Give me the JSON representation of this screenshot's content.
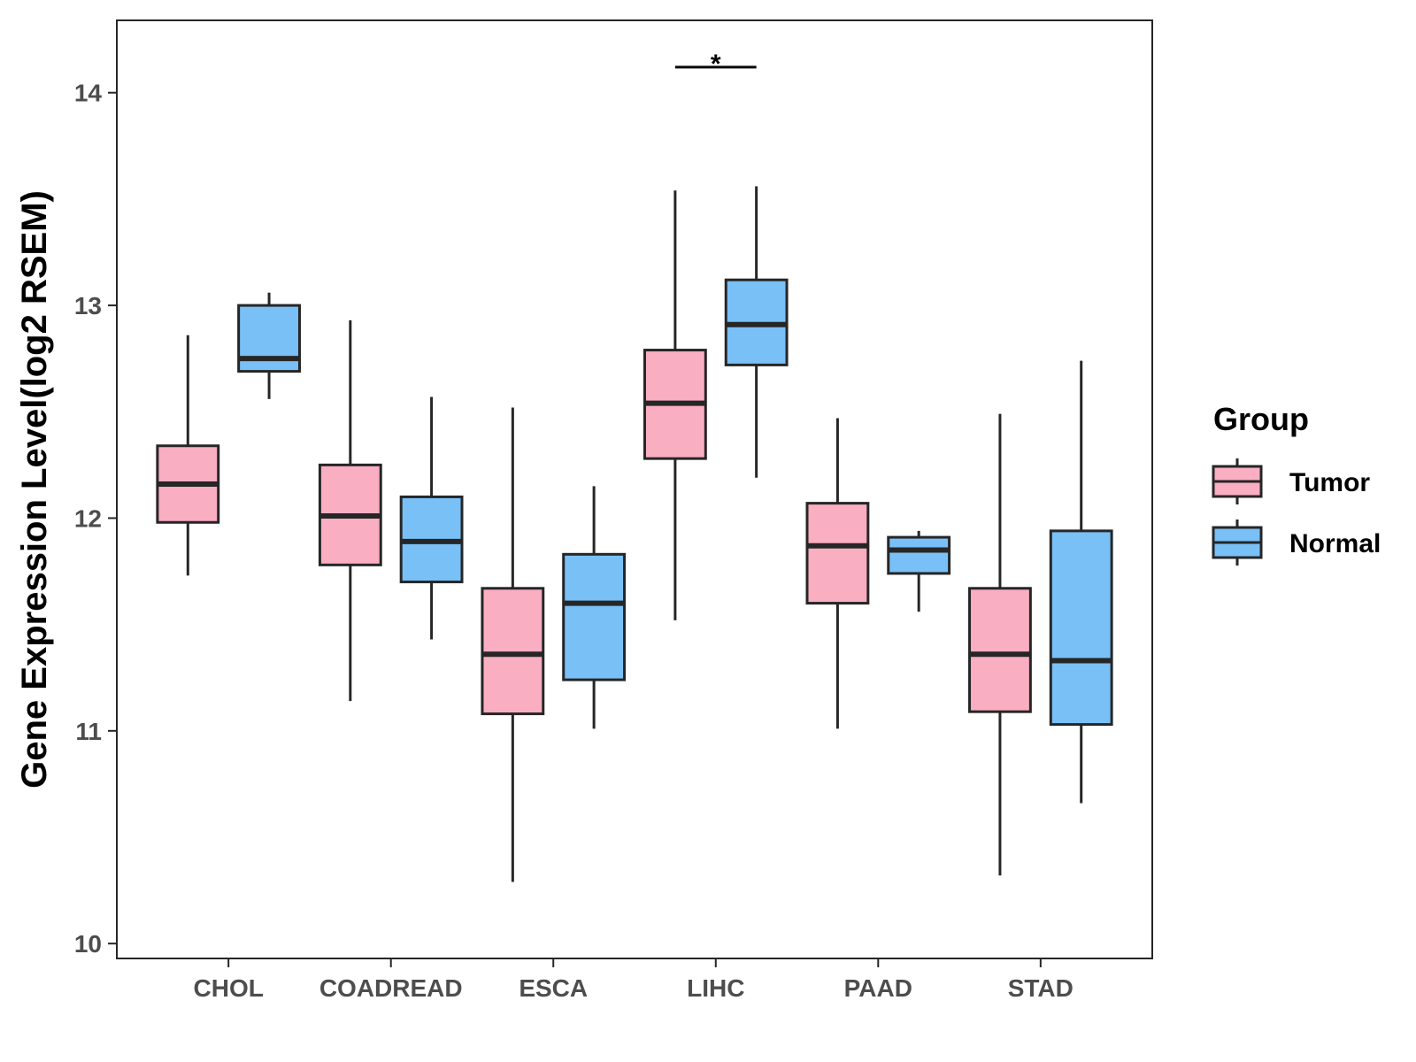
{
  "chart_data": {
    "type": "boxplot",
    "title": "",
    "xlabel": "",
    "ylabel": "Gene Expression Level(log2 RSEM)",
    "ylim": [
      9.93,
      14.34
    ],
    "yticks": [
      10,
      11,
      12,
      13,
      14
    ],
    "grid": false,
    "categories": [
      "CHOL",
      "COADREAD",
      "ESCA",
      "LIHC",
      "PAAD",
      "STAD"
    ],
    "legend": {
      "title": "Group",
      "placement": "right",
      "entries": [
        "Tumor",
        "Normal"
      ]
    },
    "colors": {
      "Tumor": "#f9aec2",
      "Normal": "#79c0f7",
      "stroke": "#262626"
    },
    "series": [
      {
        "name": "Tumor",
        "boxes": [
          {
            "min": 11.73,
            "q1": 11.98,
            "median": 12.16,
            "q3": 12.34,
            "max": 12.86
          },
          {
            "min": 11.14,
            "q1": 11.78,
            "median": 12.01,
            "q3": 12.25,
            "max": 12.93
          },
          {
            "min": 10.29,
            "q1": 11.08,
            "median": 11.36,
            "q3": 11.67,
            "max": 12.52
          },
          {
            "min": 11.52,
            "q1": 12.28,
            "median": 12.54,
            "q3": 12.79,
            "max": 13.54
          },
          {
            "min": 11.01,
            "q1": 11.6,
            "median": 11.87,
            "q3": 12.07,
            "max": 12.47
          },
          {
            "min": 10.32,
            "q1": 11.09,
            "median": 11.36,
            "q3": 11.67,
            "max": 12.49
          }
        ]
      },
      {
        "name": "Normal",
        "boxes": [
          {
            "min": 12.56,
            "q1": 12.69,
            "median": 12.75,
            "q3": 13.0,
            "max": 13.06
          },
          {
            "min": 11.43,
            "q1": 11.7,
            "median": 11.89,
            "q3": 12.1,
            "max": 12.57
          },
          {
            "min": 11.01,
            "q1": 11.24,
            "median": 11.6,
            "q3": 11.83,
            "max": 12.15
          },
          {
            "min": 12.19,
            "q1": 12.72,
            "median": 12.91,
            "q3": 13.12,
            "max": 13.56
          },
          {
            "min": 11.56,
            "q1": 11.74,
            "median": 11.85,
            "q3": 11.91,
            "max": 11.94
          },
          {
            "min": 10.66,
            "q1": 11.03,
            "median": 11.33,
            "q3": 11.94,
            "max": 12.74
          }
        ]
      }
    ],
    "annotations": [
      {
        "category": "LIHC",
        "label": "*",
        "y": 14.12
      }
    ]
  }
}
